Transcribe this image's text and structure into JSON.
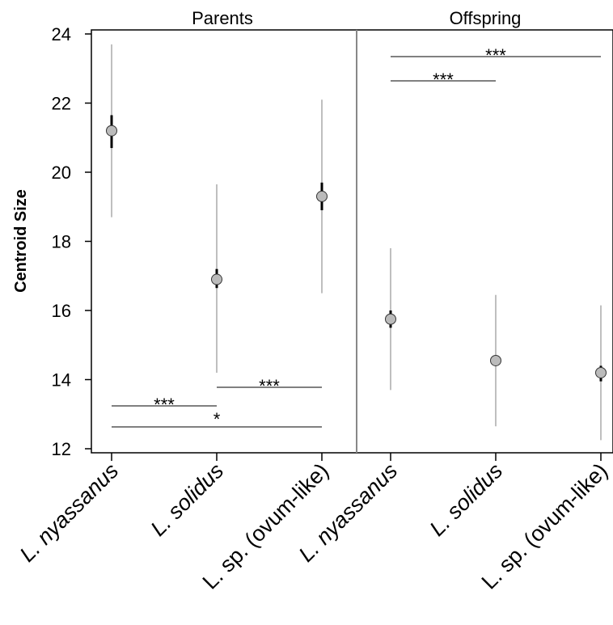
{
  "chart_data": [
    {
      "type": "errorpoint",
      "title": "Parents",
      "y_label": "Centroid Size",
      "categories": [
        "L. nyassanus",
        "L. solidus",
        "L. sp. (ovum-like)"
      ],
      "values": [
        21.2,
        16.9,
        19.3
      ],
      "ci_low": [
        18.7,
        14.2,
        16.5
      ],
      "ci_high": [
        23.7,
        19.65,
        22.1
      ],
      "se_low": [
        20.7,
        16.65,
        18.9
      ],
      "se_high": [
        21.65,
        17.2,
        19.7
      ],
      "color": "#bbbbbb",
      "ylim": [
        12,
        24
      ],
      "yticks": [
        12,
        14,
        16,
        18,
        20,
        22,
        24
      ],
      "annotations": [
        {
          "from": 0,
          "to": 1,
          "label": "***"
        },
        {
          "from": 0,
          "to": 2,
          "label": "*"
        },
        {
          "from": 1,
          "to": 2,
          "label": "***"
        }
      ]
    },
    {
      "type": "errorpoint",
      "title": "Offspring",
      "categories": [
        "L. nyassanus",
        "L. solidus",
        "L. sp. (ovum-like)"
      ],
      "values": [
        15.75,
        14.55,
        14.2
      ],
      "ci_low": [
        13.7,
        12.65,
        12.25
      ],
      "ci_high": [
        17.8,
        16.45,
        16.15
      ],
      "se_low": [
        15.5,
        14.4,
        13.95
      ],
      "se_high": [
        16.0,
        14.7,
        14.4
      ],
      "color": "#bbbbbb",
      "ylim": [
        12,
        24
      ],
      "annotations": [
        {
          "from": 0,
          "to": 1,
          "label": "***"
        },
        {
          "from": 0,
          "to": 2,
          "label": "***"
        }
      ]
    }
  ]
}
